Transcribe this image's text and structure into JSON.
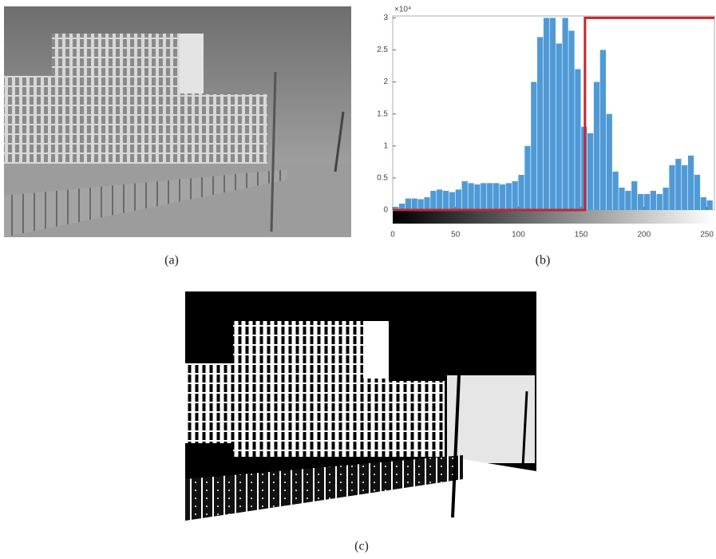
{
  "captions": [
    "(a)",
    "(b)",
    "(c)"
  ],
  "chart_data": {
    "type": "histogram",
    "y_multiplier": "×10⁴",
    "bins": [
      0,
      5,
      10,
      15,
      20,
      25,
      30,
      35,
      40,
      45,
      50,
      55,
      60,
      65,
      70,
      75,
      80,
      85,
      90,
      95,
      100,
      105,
      110,
      115,
      120,
      125,
      130,
      135,
      140,
      145,
      150,
      155,
      160,
      165,
      170,
      175,
      180,
      185,
      190,
      195,
      200,
      205,
      210,
      215,
      220,
      225,
      230,
      235,
      240,
      245,
      250,
      255
    ],
    "values": [
      0.05,
      0.1,
      0.18,
      0.18,
      0.17,
      0.2,
      0.3,
      0.32,
      0.3,
      0.28,
      0.32,
      0.45,
      0.42,
      0.4,
      0.42,
      0.42,
      0.42,
      0.4,
      0.42,
      0.45,
      0.55,
      1.0,
      2.0,
      2.7,
      3.0,
      3.0,
      2.6,
      3.0,
      2.8,
      2.2,
      1.3,
      1.2,
      2.0,
      2.5,
      1.5,
      0.6,
      0.35,
      0.3,
      0.45,
      0.25,
      0.25,
      0.3,
      0.25,
      0.35,
      0.7,
      0.8,
      0.7,
      0.85,
      0.55,
      0.2,
      0.15
    ],
    "color": "#4f9ad6",
    "threshold": {
      "x": [
        0,
        153,
        153,
        256
      ],
      "values": [
        0,
        0,
        3,
        3
      ],
      "color": "#c8242b"
    },
    "xlim": [
      0,
      256
    ],
    "ylim": [
      0,
      3.03
    ],
    "xticks": [
      0,
      50,
      100,
      150,
      200,
      250
    ],
    "yticks": [
      0,
      0.5,
      1,
      1.5,
      2,
      2.5,
      3
    ]
  }
}
